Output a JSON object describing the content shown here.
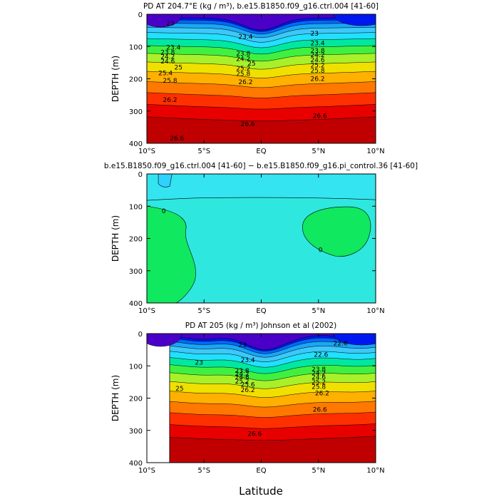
{
  "figure": {
    "xlabel": "Latitude",
    "colors": {
      "scale": [
        "#4b00c8",
        "#0018f0",
        "#0068ff",
        "#1aa6f5",
        "#3cc8f8",
        "#22e0ff",
        "#00e8a0",
        "#40f040",
        "#a8f02a",
        "#f0e000",
        "#ffb000",
        "#ff7800",
        "#ff3000",
        "#e80000",
        "#c00000"
      ],
      "diff_base": "#2ee8e0",
      "diff_pos": "#10e860",
      "diff_neg": "#30d0ff"
    }
  },
  "chart_data": [
    {
      "type": "contour",
      "title": "PD AT 204.7°E (kg / m³), b.e15.B1850.f09_g16.ctrl.004 [41-60]",
      "ylabel": "DEPTH (m)",
      "xlim": [
        -10,
        10
      ],
      "ylim": [
        400,
        0
      ],
      "xticks": [
        "10°S",
        "5°S",
        "EQ",
        "5°N",
        "10°N"
      ],
      "yticks": [
        "0",
        "100",
        "200",
        "300",
        "400"
      ],
      "levels": [
        21.4,
        21.8,
        22.2,
        22.6,
        23.0,
        23.4,
        23.8,
        24.2,
        24.6,
        25.0,
        25.4,
        25.8,
        26.2,
        26.6
      ],
      "labels": [
        {
          "text": "23",
          "x": -8.3,
          "y": 28
        },
        {
          "text": "23.4",
          "x": -2.0,
          "y": 70
        },
        {
          "text": "23.4",
          "x": -8.3,
          "y": 103
        },
        {
          "text": "23.8",
          "x": -8.8,
          "y": 118
        },
        {
          "text": "24.2",
          "x": -8.8,
          "y": 131
        },
        {
          "text": "24.6",
          "x": -8.8,
          "y": 146
        },
        {
          "text": "25",
          "x": -7.6,
          "y": 165
        },
        {
          "text": "25.4",
          "x": -9.0,
          "y": 182
        },
        {
          "text": "25.8",
          "x": -8.6,
          "y": 205
        },
        {
          "text": "26.2",
          "x": -8.6,
          "y": 265
        },
        {
          "text": "26.6",
          "x": -8.0,
          "y": 385
        },
        {
          "text": "23",
          "x": 4.3,
          "y": 60
        },
        {
          "text": "23.4",
          "x": 4.3,
          "y": 90
        },
        {
          "text": "23.8",
          "x": 4.3,
          "y": 113
        },
        {
          "text": "24.2",
          "x": 4.3,
          "y": 126
        },
        {
          "text": "24.6",
          "x": 4.3,
          "y": 141
        },
        {
          "text": "25.2",
          "x": 4.3,
          "y": 158
        },
        {
          "text": "25.8",
          "x": 4.3,
          "y": 175
        },
        {
          "text": "26.2",
          "x": 4.3,
          "y": 200
        },
        {
          "text": "26.6",
          "x": 4.5,
          "y": 315
        },
        {
          "text": "23.8",
          "x": -2.2,
          "y": 122
        },
        {
          "text": "24.2",
          "x": -2.2,
          "y": 138
        },
        {
          "text": "25",
          "x": -1.2,
          "y": 152
        },
        {
          "text": "25.2",
          "x": -2.2,
          "y": 168
        },
        {
          "text": "25.8",
          "x": -2.2,
          "y": 185
        },
        {
          "text": "26.2",
          "x": -2.0,
          "y": 210
        },
        {
          "text": "26.6",
          "x": -1.8,
          "y": 340
        }
      ]
    },
    {
      "type": "contour",
      "title": "b.e15.B1850.f09_g16.ctrl.004 [41-60] − b.e15.B1850.f09_g16.pi_control.36 [41-60]",
      "ylabel": "DEPTH (m)",
      "xlim": [
        -10,
        10
      ],
      "ylim": [
        400,
        0
      ],
      "xticks": [
        "10°S",
        "5°S",
        "EQ",
        "5°N",
        "10°N"
      ],
      "yticks": [
        "0",
        "100",
        "200",
        "300",
        "400"
      ],
      "labels": [
        {
          "text": "0",
          "x": -8.7,
          "y": 115
        },
        {
          "text": "0",
          "x": 5.0,
          "y": 235
        }
      ]
    },
    {
      "type": "contour",
      "title": "PD AT 205 (kg / m³) Johnson et al (2002)",
      "ylabel": "DEPTH (m)",
      "xlim": [
        -10,
        10
      ],
      "ylim": [
        400,
        0
      ],
      "xticks": [
        "10°S",
        "5°S",
        "EQ",
        "5°N",
        "10°N"
      ],
      "yticks": [
        "0",
        "100",
        "200",
        "300",
        "400"
      ],
      "data_start": -8,
      "labels": [
        {
          "text": "23",
          "x": -5.8,
          "y": 90
        },
        {
          "text": "23",
          "x": -2.0,
          "y": 35
        },
        {
          "text": "23.4",
          "x": -1.8,
          "y": 82
        },
        {
          "text": "23.8",
          "x": -2.3,
          "y": 115
        },
        {
          "text": "24.2",
          "x": -2.3,
          "y": 125
        },
        {
          "text": "24.8",
          "x": -2.3,
          "y": 135
        },
        {
          "text": "25.2",
          "x": -2.3,
          "y": 148
        },
        {
          "text": "25.6",
          "x": -1.8,
          "y": 158
        },
        {
          "text": "26.2",
          "x": -1.8,
          "y": 175
        },
        {
          "text": "25",
          "x": -7.5,
          "y": 170
        },
        {
          "text": "22.6",
          "x": 4.6,
          "y": 65
        },
        {
          "text": "23.8",
          "x": 4.4,
          "y": 110
        },
        {
          "text": "24.2",
          "x": 4.4,
          "y": 123
        },
        {
          "text": "24.6",
          "x": 4.4,
          "y": 135
        },
        {
          "text": "25.2",
          "x": 4.4,
          "y": 150
        },
        {
          "text": "25.8",
          "x": 4.4,
          "y": 165
        },
        {
          "text": "26.2",
          "x": 4.7,
          "y": 185
        },
        {
          "text": "26.6",
          "x": 4.5,
          "y": 235
        },
        {
          "text": "26.6",
          "x": -1.2,
          "y": 310
        },
        {
          "text": "22.6",
          "x": 6.3,
          "y": 30
        }
      ]
    }
  ]
}
